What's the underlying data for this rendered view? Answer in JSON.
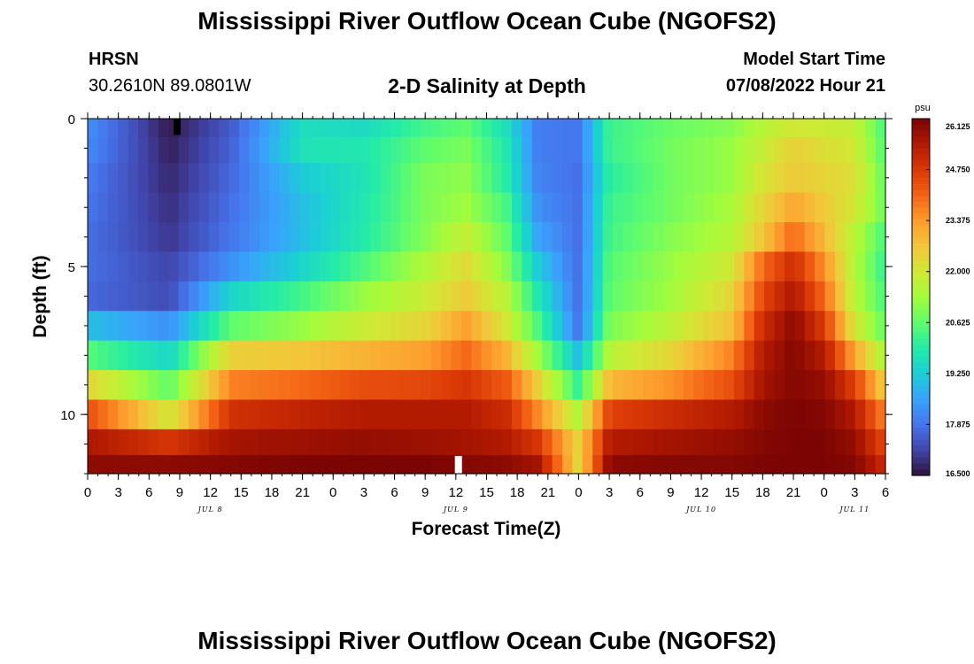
{
  "page": {
    "title_top": "Mississippi River Outflow Ocean Cube (NGOFS2)",
    "title_bottom": "Mississippi River Outflow Ocean Cube (NGOFS2)",
    "station": "HRSN",
    "coords": "30.2610N  89.0801W",
    "subtitle": "2-D Salinity at Depth",
    "model_start_label": "Model Start Time",
    "model_start_value": "07/08/2022 Hour 21"
  },
  "colors": {
    "palette": [
      "#30123b",
      "#4145ab",
      "#4675ed",
      "#39a2fc",
      "#1bcfd4",
      "#24eca6",
      "#61fc6c",
      "#a4fc3b",
      "#d1e834",
      "#f3c63a",
      "#fe9b2d",
      "#f36315",
      "#d93806",
      "#b11901",
      "#7a0403"
    ]
  },
  "chart_data": {
    "type": "heatmap",
    "xlabel": "Forecast Time(Z)",
    "ylabel": "Depth (ft)",
    "colorbar_unit": "psu",
    "colorbar_ticks": [
      "26.125",
      "24.750",
      "23.375",
      "22.000",
      "20.625",
      "19.250",
      "17.875",
      "16.500"
    ],
    "value_range": [
      16.5,
      26.125
    ],
    "x_range_hours": [
      0,
      78
    ],
    "x_tick_labels": [
      "0",
      "3",
      "6",
      "9",
      "12",
      "15",
      "18",
      "21",
      "0",
      "3",
      "6",
      "9",
      "12",
      "15",
      "18",
      "21",
      "0",
      "3",
      "6",
      "9",
      "12",
      "15",
      "18",
      "21",
      "0",
      "3",
      "6"
    ],
    "x_tick_hours": [
      0,
      3,
      6,
      9,
      12,
      15,
      18,
      21,
      24,
      27,
      30,
      33,
      36,
      39,
      42,
      45,
      48,
      51,
      54,
      57,
      60,
      63,
      66,
      69,
      72,
      75,
      78
    ],
    "date_labels": [
      {
        "text": "JUL 8",
        "hour": 12
      },
      {
        "text": "JUL 9",
        "hour": 36
      },
      {
        "text": "JUL 10",
        "hour": 60
      },
      {
        "text": "JUL 11",
        "hour": 75
      }
    ],
    "y_range_ft": [
      0,
      12
    ],
    "y_tick_labels": [
      "0",
      "5",
      "10"
    ],
    "y_tick_values": [
      0,
      5,
      10
    ],
    "depth_layers_ft": [
      0.25,
      1,
      2,
      3,
      4,
      5,
      6,
      7,
      8,
      9,
      10,
      11,
      11.75
    ],
    "time_keyframes_hours": [
      0,
      8,
      14,
      21,
      27,
      33,
      37,
      41,
      44,
      48,
      51,
      57,
      63,
      66,
      69,
      72,
      75,
      78
    ],
    "salinity_keyframes": [
      [
        18.3,
        16.6,
        17.5,
        19.6,
        19.5,
        20.3,
        20.6,
        19.6,
        18.0,
        17.9,
        20.2,
        20.7,
        21.0,
        21.6,
        22.0,
        21.9,
        21.8,
        20.3
      ],
      [
        18.2,
        16.7,
        17.6,
        19.7,
        19.8,
        20.6,
        20.9,
        19.8,
        18.0,
        17.9,
        20.2,
        20.8,
        21.2,
        21.8,
        22.5,
        22.2,
        22.0,
        20.4
      ],
      [
        18.0,
        16.8,
        17.7,
        19.2,
        19.7,
        20.9,
        21.1,
        19.9,
        18.1,
        17.8,
        20.0,
        20.8,
        21.2,
        22.1,
        22.6,
        22.4,
        22.2,
        20.6
      ],
      [
        17.9,
        16.9,
        17.8,
        19.0,
        19.8,
        20.9,
        21.3,
        20.3,
        18.3,
        17.8,
        20.2,
        20.8,
        21.4,
        22.4,
        23.2,
        22.6,
        22.0,
        20.7
      ],
      [
        17.8,
        17.0,
        17.9,
        19.0,
        19.9,
        21.0,
        21.8,
        20.6,
        18.6,
        17.8,
        20.3,
        21.0,
        21.6,
        22.7,
        24.0,
        22.9,
        21.6,
        20.3
      ],
      [
        17.8,
        17.2,
        18.3,
        19.4,
        20.4,
        21.5,
        22.3,
        21.0,
        19.2,
        17.8,
        20.5,
        21.2,
        22.0,
        24.0,
        25.0,
        23.5,
        21.5,
        20.1
      ],
      [
        17.7,
        17.3,
        19.4,
        20.3,
        21.2,
        21.9,
        22.6,
        21.6,
        19.8,
        17.8,
        20.6,
        21.3,
        22.4,
        24.5,
        25.5,
        24.0,
        21.6,
        20.3
      ],
      [
        19.0,
        18.3,
        20.6,
        21.2,
        21.9,
        22.4,
        23.3,
        22.0,
        20.4,
        17.9,
        20.9,
        21.7,
        22.8,
        25.0,
        25.9,
        24.7,
        22.0,
        20.6
      ],
      [
        20.5,
        19.4,
        22.5,
        22.7,
        23.0,
        23.3,
        24.0,
        23.0,
        21.3,
        19.0,
        21.6,
        22.4,
        23.7,
        25.4,
        26.0,
        25.4,
        23.2,
        21.3
      ],
      [
        22.4,
        20.6,
        23.7,
        24.0,
        24.4,
        24.5,
        24.8,
        24.2,
        22.5,
        20.1,
        22.9,
        23.5,
        24.4,
        25.6,
        26.0,
        25.8,
        24.6,
        22.4
      ],
      [
        24.4,
        22.0,
        24.9,
        25.2,
        25.4,
        25.4,
        25.4,
        25.0,
        23.6,
        21.5,
        24.6,
        25.0,
        25.4,
        25.9,
        26.1,
        26.0,
        25.4,
        23.6
      ],
      [
        25.5,
        24.8,
        25.6,
        25.7,
        25.8,
        25.7,
        25.6,
        25.4,
        24.8,
        22.4,
        25.4,
        25.6,
        25.8,
        26.0,
        26.1,
        26.1,
        25.8,
        24.4
      ],
      [
        25.9,
        25.9,
        26.0,
        26.1,
        26.1,
        26.1,
        26.0,
        25.9,
        25.6,
        22.3,
        25.9,
        26.0,
        26.0,
        26.1,
        26.1,
        26.1,
        26.0,
        25.0
      ]
    ],
    "markers": [
      {
        "hour": 8.75,
        "depth_ft": 0.25,
        "color": "#000000"
      },
      {
        "hour": 36.25,
        "depth_ft": 11.75,
        "color": "#ffffff"
      }
    ]
  }
}
